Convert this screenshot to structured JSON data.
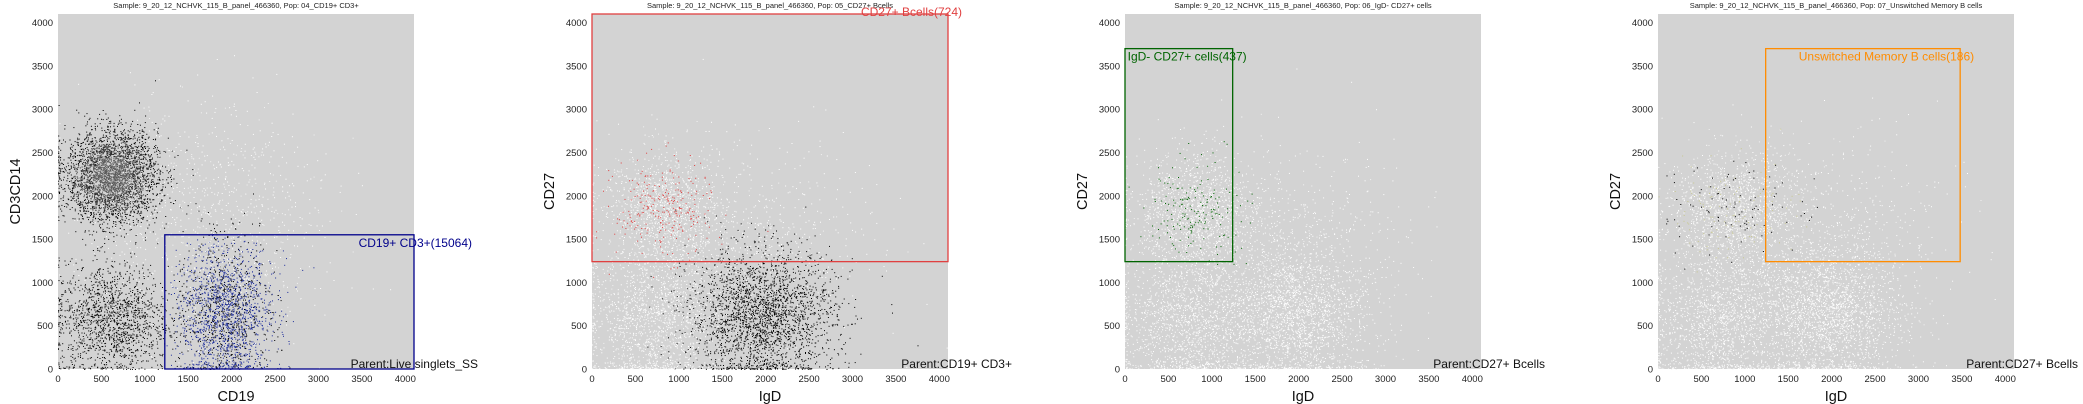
{
  "figure": {
    "background": "#ffffff"
  },
  "chart_data": [
    {
      "type": "scatter",
      "title": "Sample: 9_20_12_NCHVK_115_B_panel_466360, Pop: 04_CD19+ CD3+",
      "xlabel": "CD19",
      "ylabel": "CD3CD14",
      "xlim": [
        0,
        4100
      ],
      "ylim": [
        0,
        4100
      ],
      "xticks": [
        0,
        500,
        1000,
        1500,
        2000,
        2500,
        3000,
        3500,
        4000
      ],
      "yticks": [
        0,
        500,
        1000,
        1500,
        2000,
        2500,
        3000,
        3500,
        4000
      ],
      "background": "#d3d3d3",
      "grid": false,
      "gate": {
        "label": "CD19+ CD3+(15064)",
        "x": [
          1230,
          4100
        ],
        "y": [
          0,
          1550
        ],
        "color": "#00008b"
      },
      "parent_label": "Parent:Live singlets_SS",
      "clusters": [
        {
          "name": "monocytes",
          "cx": 620,
          "cy": 2220,
          "sx": 260,
          "sy": 260,
          "count": 3400,
          "shade": "dark"
        },
        {
          "name": "lymphocytes",
          "cx": 620,
          "cy": 580,
          "sx": 330,
          "sy": 320,
          "count": 1500,
          "shade": "black"
        },
        {
          "name": "cd19",
          "cx": 1920,
          "cy": 640,
          "sx": 270,
          "sy": 420,
          "count": 2200,
          "shade": "gated"
        },
        {
          "name": "diffuse",
          "cx": 1700,
          "cy": 1800,
          "sx": 700,
          "sy": 650,
          "count": 900,
          "shade": "white"
        }
      ]
    },
    {
      "type": "scatter",
      "title": "Sample: 9_20_12_NCHVK_115_B_panel_466360, Pop: 05_CD27+ Bcells",
      "xlabel": "IgD",
      "ylabel": "CD27",
      "xlim": [
        0,
        4100
      ],
      "ylim": [
        0,
        4100
      ],
      "xticks": [
        0,
        500,
        1000,
        1500,
        2000,
        2500,
        3000,
        3500,
        4000
      ],
      "yticks": [
        0,
        500,
        1000,
        1500,
        2000,
        2500,
        3000,
        3500,
        4000
      ],
      "background": "#d3d3d3",
      "grid": false,
      "gate": {
        "label": "CD27+ Bcells(724)",
        "x": [
          0,
          4100
        ],
        "y": [
          1240,
          4100
        ],
        "color": "#e04040"
      },
      "parent_label": "Parent:CD19+ CD3+",
      "clusters": [
        {
          "name": "cd27pos",
          "cx": 820,
          "cy": 1850,
          "sx": 330,
          "sy": 330,
          "count": 1100,
          "shade": "white"
        },
        {
          "name": "main",
          "cx": 1950,
          "cy": 620,
          "sx": 420,
          "sy": 380,
          "count": 2600,
          "shade": "black"
        },
        {
          "name": "lowleft",
          "cx": 700,
          "cy": 550,
          "sx": 380,
          "sy": 420,
          "count": 1500,
          "shade": "white"
        },
        {
          "name": "diffuse",
          "cx": 1700,
          "cy": 1500,
          "sx": 750,
          "sy": 550,
          "count": 700,
          "shade": "white"
        }
      ]
    },
    {
      "type": "scatter",
      "title": "Sample: 9_20_12_NCHVK_115_B_panel_466360, Pop: 06_IgD- CD27+ cells",
      "xlabel": "IgD",
      "ylabel": "CD27",
      "xlim": [
        0,
        4100
      ],
      "ylim": [
        0,
        4100
      ],
      "xticks": [
        0,
        500,
        1000,
        1500,
        2000,
        2500,
        3000,
        3500,
        4000
      ],
      "yticks": [
        0,
        500,
        1000,
        1500,
        2000,
        2500,
        3000,
        3500,
        4000
      ],
      "background": "#d3d3d3",
      "grid": false,
      "gate": {
        "label": "IgD- CD27+ cells(437)",
        "x": [
          0,
          1240
        ],
        "y": [
          1240,
          3700
        ],
        "color": "#006400"
      },
      "parent_label": "Parent:CD27+ Bcells",
      "clusters": [
        {
          "name": "cd27pos",
          "cx": 820,
          "cy": 1850,
          "sx": 330,
          "sy": 330,
          "count": 1200,
          "shade": "white"
        },
        {
          "name": "main",
          "cx": 1950,
          "cy": 620,
          "sx": 430,
          "sy": 400,
          "count": 2200,
          "shade": "white"
        },
        {
          "name": "lowleft",
          "cx": 700,
          "cy": 550,
          "sx": 380,
          "sy": 420,
          "count": 1500,
          "shade": "white"
        },
        {
          "name": "diffuse",
          "cx": 1700,
          "cy": 1500,
          "sx": 750,
          "sy": 550,
          "count": 700,
          "shade": "white"
        }
      ]
    },
    {
      "type": "scatter",
      "title": "Sample: 9_20_12_NCHVK_115_B_panel_466360, Pop: 07_Unswitched Memory B cells",
      "xlabel": "IgD",
      "ylabel": "CD27",
      "xlim": [
        0,
        4100
      ],
      "ylim": [
        0,
        4100
      ],
      "xticks": [
        0,
        500,
        1000,
        1500,
        2000,
        2500,
        3000,
        3500,
        4000
      ],
      "yticks": [
        0,
        500,
        1000,
        1500,
        2000,
        2500,
        3000,
        3500,
        4000
      ],
      "background": "#d3d3d3",
      "grid": false,
      "gate": {
        "label": "Unswitched Memory B cells(186)",
        "x": [
          1240,
          3480
        ],
        "y": [
          1240,
          3700
        ],
        "color": "#ff8c00"
      },
      "parent_label": "Parent:CD27+ Bcells",
      "clusters": [
        {
          "name": "cd27pos",
          "cx": 820,
          "cy": 1850,
          "sx": 330,
          "sy": 330,
          "count": 1100,
          "shade": "white"
        },
        {
          "name": "main",
          "cx": 1950,
          "cy": 620,
          "sx": 430,
          "sy": 400,
          "count": 2200,
          "shade": "white"
        },
        {
          "name": "lowleft",
          "cx": 700,
          "cy": 550,
          "sx": 380,
          "sy": 420,
          "count": 1500,
          "shade": "white"
        },
        {
          "name": "diffuse",
          "cx": 1700,
          "cy": 1500,
          "sx": 750,
          "sy": 550,
          "count": 900,
          "shade": "white"
        }
      ]
    }
  ]
}
